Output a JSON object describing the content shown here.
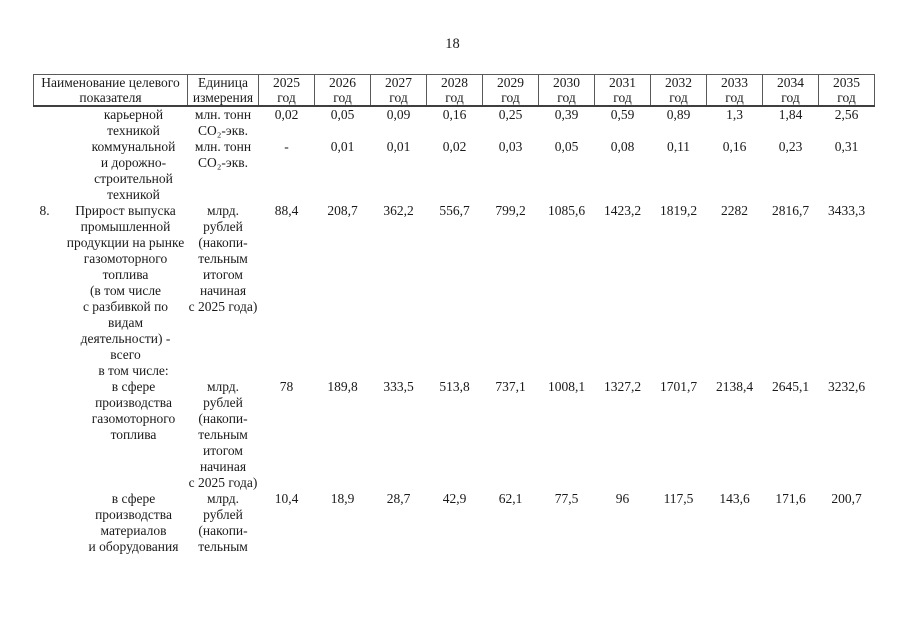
{
  "page": {
    "number": "18"
  },
  "table": {
    "header": {
      "indicator": [
        "Наименование целевого",
        "показателя"
      ],
      "unit": [
        "Единица",
        "измерения"
      ],
      "years": [
        "2025",
        "2026",
        "2027",
        "2028",
        "2029",
        "2030",
        "2031",
        "2032",
        "2033",
        "2034",
        "2035"
      ],
      "year_suffix": "год"
    },
    "rows": [
      {
        "num": "",
        "indent": "sub",
        "name_lines": [
          "карьерной",
          "техникой"
        ],
        "unit_lines": [
          "млн. тонн",
          "CO₂-экв."
        ],
        "values": [
          "0,02",
          "0,05",
          "0,09",
          "0,16",
          "0,25",
          "0,39",
          "0,59",
          "0,89",
          "1,3",
          "1,84",
          "2,56"
        ]
      },
      {
        "num": "",
        "indent": "sub",
        "name_lines": [
          "коммунальной",
          "и дорожно-",
          "строительной",
          "техникой"
        ],
        "unit_lines": [
          "млн. тонн",
          "CO₂-экв."
        ],
        "values": [
          "-",
          "0,01",
          "0,01",
          "0,02",
          "0,03",
          "0,05",
          "0,08",
          "0,11",
          "0,16",
          "0,23",
          "0,31"
        ]
      },
      {
        "num": "8.",
        "indent": "item",
        "name_lines": [
          "Прирост выпуска",
          "промышленной",
          "продукции на рынке",
          "газомоторного",
          "топлива",
          "(в том числе",
          "с разбивкой по видам",
          "деятельности) -",
          "всего"
        ],
        "unit_lines": [
          "млрд.",
          "рублей",
          "(накопи-",
          "тельным",
          "итогом",
          "начиная",
          "с 2025 года)"
        ],
        "values": [
          "88,4",
          "208,7",
          "362,2",
          "556,7",
          "799,2",
          "1085,6",
          "1423,2",
          "1819,2",
          "2282",
          "2816,7",
          "3433,3"
        ]
      },
      {
        "num": "",
        "indent": "note",
        "name_lines": [
          "в том числе:"
        ],
        "unit_lines": [],
        "values": [
          "",
          "",
          "",
          "",
          "",
          "",
          "",
          "",
          "",
          "",
          ""
        ]
      },
      {
        "num": "",
        "indent": "sub",
        "name_lines": [
          "в сфере",
          "производства",
          "газомоторного",
          "топлива"
        ],
        "unit_lines": [
          "млрд.",
          "рублей",
          "(накопи-",
          "тельным",
          "итогом",
          "начиная",
          "с 2025 года)"
        ],
        "values": [
          "78",
          "189,8",
          "333,5",
          "513,8",
          "737,1",
          "1008,1",
          "1327,2",
          "1701,7",
          "2138,4",
          "2645,1",
          "3232,6"
        ]
      },
      {
        "num": "",
        "indent": "sub",
        "name_lines": [
          "в сфере",
          "производства",
          "материалов",
          "и оборудования"
        ],
        "unit_lines": [
          "млрд.",
          "рублей",
          "(накопи-",
          "тельным"
        ],
        "values": [
          "10,4",
          "18,9",
          "28,7",
          "42,9",
          "62,1",
          "77,5",
          "96",
          "117,5",
          "143,6",
          "171,6",
          "200,7"
        ]
      }
    ]
  }
}
